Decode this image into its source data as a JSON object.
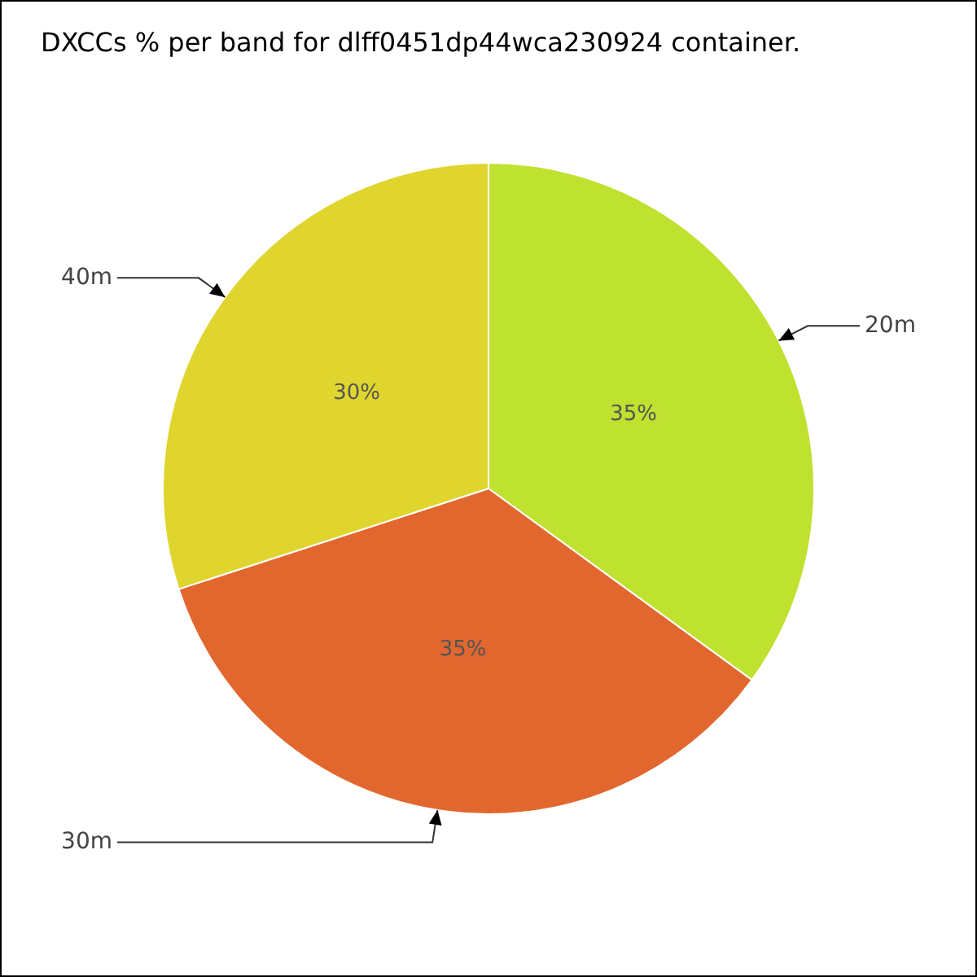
{
  "chart_data": {
    "type": "pie",
    "title": "DXCCs % per band for dlff0451dp44wca230924 container.",
    "categories": [
      "20m",
      "30m",
      "40m"
    ],
    "values": [
      35,
      35,
      30
    ],
    "colors": [
      "#bfe12f",
      "#e2672f",
      "#e0d52e"
    ],
    "value_labels": [
      "35%",
      "35%",
      "30%"
    ]
  }
}
